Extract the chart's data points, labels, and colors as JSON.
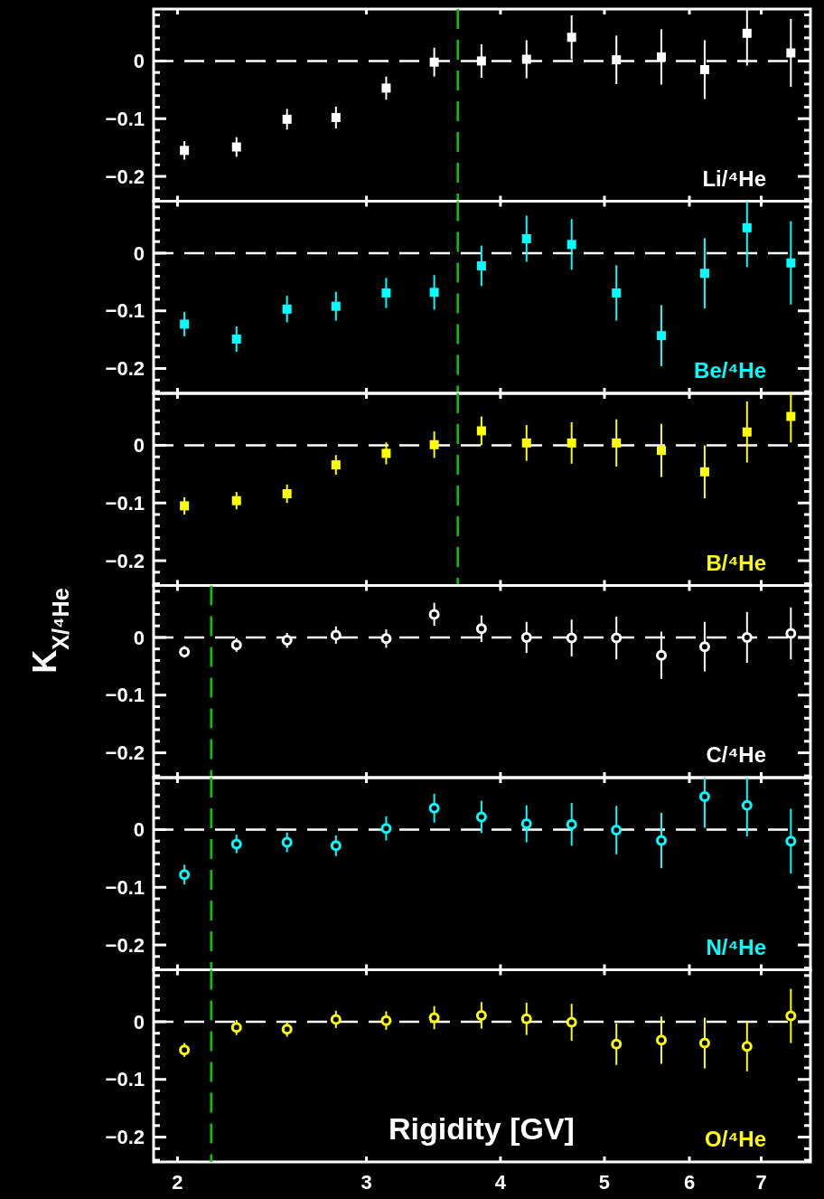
{
  "chart_data": [
    {
      "type": "scatter",
      "x": [
        2.03,
        2.27,
        2.53,
        2.81,
        3.13,
        3.47,
        3.84,
        4.23,
        4.66,
        5.13,
        5.65,
        6.2,
        6.79,
        7.46
      ],
      "series": [
        {
          "name": "Li/⁴He",
          "color": "#ffffff",
          "values": [
            -0.155,
            -0.149,
            -0.101,
            -0.098,
            -0.047,
            -0.002,
            0,
            0.003,
            0.041,
            0.002,
            0.007,
            -0.015,
            0.048,
            0.014
          ],
          "errors": [
            0.016,
            0.017,
            0.018,
            0.019,
            0.02,
            0.025,
            0.029,
            0.033,
            0.038,
            0.042,
            0.048,
            0.051,
            [
              -0.008,
              0.09
            ],
            0.059
          ]
        }
      ],
      "marker": "square",
      "log": "x",
      "xlim": [
        1.9,
        7.78
      ],
      "xticks": [
        {
          "value": 2,
          "label": null
        },
        {
          "value": 3,
          "label": null
        },
        {
          "value": 4,
          "label": null
        },
        {
          "value": 5,
          "label": null
        },
        {
          "value": 6,
          "label": null
        },
        {
          "value": 7,
          "label": null
        }
      ],
      "tick_labels": "y",
      "ylim": [
        -0.243,
        0.09
      ],
      "yticks": [
        {
          "value": 0.08,
          "label": null
        },
        {
          "value": 0.06,
          "label": null
        },
        {
          "value": 0.04,
          "label": null
        },
        {
          "value": 0.02,
          "label": null
        },
        {
          "value": 0,
          "label": "0"
        },
        {
          "value": -0.02,
          "label": null
        },
        {
          "value": -0.04,
          "label": null
        },
        {
          "value": -0.06,
          "label": null
        },
        {
          "value": -0.08,
          "label": null
        },
        {
          "value": -0.1,
          "label": "−0.1"
        },
        {
          "value": -0.12,
          "label": null
        },
        {
          "value": -0.14,
          "label": null
        },
        {
          "value": -0.16,
          "label": null
        },
        {
          "value": -0.18,
          "label": null
        },
        {
          "value": -0.2,
          "label": "−0.2"
        },
        {
          "value": -0.22,
          "label": null
        },
        {
          "value": -0.24,
          "label": null
        }
      ],
      "ref_lines": [
        {
          "axis": "y",
          "value": 0,
          "color": "#ffffff",
          "line_style": "dashed"
        },
        {
          "axis": "x",
          "value": 3.65,
          "color": "#00cc00",
          "line_style": "dashed"
        }
      ]
    },
    {
      "type": "scatter",
      "x": [
        2.03,
        2.27,
        2.53,
        2.81,
        3.13,
        3.47,
        3.84,
        4.23,
        4.66,
        5.13,
        5.65,
        6.2,
        6.79,
        7.46
      ],
      "series": [
        {
          "name": "Be/⁴He",
          "color": "#00ffff",
          "values": [
            -0.123,
            -0.149,
            -0.097,
            -0.092,
            -0.069,
            -0.068,
            -0.022,
            0.025,
            0.015,
            -0.069,
            -0.143,
            -0.035,
            0.044,
            -0.017
          ],
          "errors": [
            0.021,
            0.022,
            0.023,
            0.025,
            0.026,
            0.03,
            0.035,
            0.04,
            0.044,
            0.048,
            0.053,
            0.061,
            [
              -0.024,
              0.09
            ],
            0.072
          ]
        }
      ],
      "marker": "square",
      "log": "x",
      "xlim": [
        1.9,
        7.78
      ],
      "xticks": [
        {
          "value": 2,
          "label": null
        },
        {
          "value": 3,
          "label": null
        },
        {
          "value": 4,
          "label": null
        },
        {
          "value": 5,
          "label": null
        },
        {
          "value": 6,
          "label": null
        },
        {
          "value": 7,
          "label": null
        }
      ],
      "tick_labels": "y",
      "ylim": [
        -0.243,
        0.09
      ],
      "yticks": [
        {
          "value": 0.08,
          "label": null
        },
        {
          "value": 0.06,
          "label": null
        },
        {
          "value": 0.04,
          "label": null
        },
        {
          "value": 0.02,
          "label": null
        },
        {
          "value": 0,
          "label": "0"
        },
        {
          "value": -0.02,
          "label": null
        },
        {
          "value": -0.04,
          "label": null
        },
        {
          "value": -0.06,
          "label": null
        },
        {
          "value": -0.08,
          "label": null
        },
        {
          "value": -0.1,
          "label": "−0.1"
        },
        {
          "value": -0.12,
          "label": null
        },
        {
          "value": -0.14,
          "label": null
        },
        {
          "value": -0.16,
          "label": null
        },
        {
          "value": -0.18,
          "label": null
        },
        {
          "value": -0.2,
          "label": "−0.2"
        },
        {
          "value": -0.22,
          "label": null
        },
        {
          "value": -0.24,
          "label": null
        }
      ],
      "ref_lines": [
        {
          "axis": "y",
          "value": 0,
          "color": "#ffffff",
          "line_style": "dashed"
        },
        {
          "axis": "x",
          "value": 3.65,
          "color": "#00cc00",
          "line_style": "dashed"
        }
      ]
    },
    {
      "type": "scatter",
      "x": [
        2.03,
        2.27,
        2.53,
        2.81,
        3.13,
        3.47,
        3.84,
        4.23,
        4.66,
        5.13,
        5.65,
        6.2,
        6.79,
        7.46
      ],
      "series": [
        {
          "name": "B/⁴He",
          "color": "#ffff00",
          "values": [
            -0.105,
            -0.096,
            -0.084,
            -0.034,
            -0.014,
            0.001,
            0.025,
            0.004,
            0.004,
            0.004,
            -0.009,
            -0.046,
            0.023,
            0.05
          ],
          "errors": [
            0.015,
            0.015,
            0.016,
            0.017,
            0.019,
            0.023,
            0.025,
            0.031,
            0.036,
            0.041,
            0.046,
            0.046,
            0.053,
            [
              0.005,
              0.09
            ]
          ]
        }
      ],
      "marker": "square",
      "log": "x",
      "xlim": [
        1.9,
        7.78
      ],
      "xticks": [
        {
          "value": 2,
          "label": null
        },
        {
          "value": 3,
          "label": null
        },
        {
          "value": 4,
          "label": null
        },
        {
          "value": 5,
          "label": null
        },
        {
          "value": 6,
          "label": null
        },
        {
          "value": 7,
          "label": null
        }
      ],
      "tick_labels": "y",
      "ylim": [
        -0.243,
        0.09
      ],
      "yticks": [
        {
          "value": 0.08,
          "label": null
        },
        {
          "value": 0.06,
          "label": null
        },
        {
          "value": 0.04,
          "label": null
        },
        {
          "value": 0.02,
          "label": null
        },
        {
          "value": 0,
          "label": "0"
        },
        {
          "value": -0.02,
          "label": null
        },
        {
          "value": -0.04,
          "label": null
        },
        {
          "value": -0.06,
          "label": null
        },
        {
          "value": -0.08,
          "label": null
        },
        {
          "value": -0.1,
          "label": "−0.1"
        },
        {
          "value": -0.12,
          "label": null
        },
        {
          "value": -0.14,
          "label": null
        },
        {
          "value": -0.16,
          "label": null
        },
        {
          "value": -0.18,
          "label": null
        },
        {
          "value": -0.2,
          "label": "−0.2"
        },
        {
          "value": -0.22,
          "label": null
        },
        {
          "value": -0.24,
          "label": null
        }
      ],
      "ref_lines": [
        {
          "axis": "y",
          "value": 0,
          "color": "#ffffff",
          "line_style": "dashed"
        },
        {
          "axis": "x",
          "value": 3.65,
          "color": "#00cc00",
          "line_style": "dashed"
        }
      ]
    },
    {
      "type": "scatter",
      "ylabel": "K$_{X/⁴He}$",
      "x": [
        2.03,
        2.27,
        2.53,
        2.81,
        3.13,
        3.47,
        3.84,
        4.23,
        4.66,
        5.13,
        5.65,
        6.2,
        6.79,
        7.46
      ],
      "series": [
        {
          "name": "C/⁴He",
          "color": "#ffffff",
          "values": [
            -0.025,
            -0.013,
            -0.005,
            0.004,
            -0.002,
            0.04,
            0.015,
            0,
            -0.001,
            -0.001,
            -0.031,
            -0.016,
            0,
            0.007
          ],
          "errors": [
            0.01,
            0.012,
            0.013,
            0.015,
            0.016,
            0.02,
            0.023,
            0.027,
            0.032,
            0.037,
            0.041,
            0.043,
            0.044,
            0.045
          ]
        }
      ],
      "marker": "circle",
      "log": "x",
      "xlim": [
        1.9,
        7.78
      ],
      "xticks": [
        {
          "value": 2,
          "label": null
        },
        {
          "value": 3,
          "label": null
        },
        {
          "value": 4,
          "label": null
        },
        {
          "value": 5,
          "label": null
        },
        {
          "value": 6,
          "label": null
        },
        {
          "value": 7,
          "label": null
        }
      ],
      "tick_labels": "y",
      "ylim": [
        -0.243,
        0.09
      ],
      "yticks": [
        {
          "value": 0.08,
          "label": null
        },
        {
          "value": 0.06,
          "label": null
        },
        {
          "value": 0.04,
          "label": null
        },
        {
          "value": 0.02,
          "label": null
        },
        {
          "value": 0,
          "label": "0"
        },
        {
          "value": -0.02,
          "label": null
        },
        {
          "value": -0.04,
          "label": null
        },
        {
          "value": -0.06,
          "label": null
        },
        {
          "value": -0.08,
          "label": null
        },
        {
          "value": -0.1,
          "label": "−0.1"
        },
        {
          "value": -0.12,
          "label": null
        },
        {
          "value": -0.14,
          "label": null
        },
        {
          "value": -0.16,
          "label": null
        },
        {
          "value": -0.18,
          "label": null
        },
        {
          "value": -0.2,
          "label": "−0.2"
        },
        {
          "value": -0.22,
          "label": null
        },
        {
          "value": -0.24,
          "label": null
        }
      ],
      "ref_lines": [
        {
          "axis": "y",
          "value": 0,
          "color": "#ffffff",
          "line_style": "dashed"
        },
        {
          "axis": "x",
          "value": 2.15,
          "color": "#00cc00",
          "line_style": "dashed"
        }
      ]
    },
    {
      "type": "scatter",
      "x": [
        2.03,
        2.27,
        2.53,
        2.81,
        3.13,
        3.47,
        3.84,
        4.23,
        4.66,
        5.13,
        5.65,
        6.2,
        6.79,
        7.46
      ],
      "series": [
        {
          "name": "N/⁴He",
          "color": "#00ffff",
          "values": [
            -0.078,
            -0.025,
            -0.022,
            -0.028,
            0.002,
            0.037,
            0.022,
            0.01,
            0.009,
            -0.001,
            -0.019,
            0.057,
            0.042,
            -0.02
          ],
          "errors": [
            0.017,
            0.016,
            0.017,
            0.018,
            0.021,
            0.025,
            0.028,
            0.032,
            0.037,
            0.042,
            0.048,
            [
              0.003,
              0.09
            ],
            [
              -0.012,
              0.09
            ],
            0.056
          ]
        }
      ],
      "marker": "circle",
      "log": "x",
      "xlim": [
        1.9,
        7.78
      ],
      "xticks": [
        {
          "value": 2,
          "label": null
        },
        {
          "value": 3,
          "label": null
        },
        {
          "value": 4,
          "label": null
        },
        {
          "value": 5,
          "label": null
        },
        {
          "value": 6,
          "label": null
        },
        {
          "value": 7,
          "label": null
        }
      ],
      "tick_labels": "y",
      "ylim": [
        -0.243,
        0.09
      ],
      "yticks": [
        {
          "value": 0.08,
          "label": null
        },
        {
          "value": 0.06,
          "label": null
        },
        {
          "value": 0.04,
          "label": null
        },
        {
          "value": 0.02,
          "label": null
        },
        {
          "value": 0,
          "label": "0"
        },
        {
          "value": -0.02,
          "label": null
        },
        {
          "value": -0.04,
          "label": null
        },
        {
          "value": -0.06,
          "label": null
        },
        {
          "value": -0.08,
          "label": null
        },
        {
          "value": -0.1,
          "label": "−0.1"
        },
        {
          "value": -0.12,
          "label": null
        },
        {
          "value": -0.14,
          "label": null
        },
        {
          "value": -0.16,
          "label": null
        },
        {
          "value": -0.18,
          "label": null
        },
        {
          "value": -0.2,
          "label": "−0.2"
        },
        {
          "value": -0.22,
          "label": null
        },
        {
          "value": -0.24,
          "label": null
        }
      ],
      "ref_lines": [
        {
          "axis": "y",
          "value": 0,
          "color": "#ffffff",
          "line_style": "dashed"
        },
        {
          "axis": "x",
          "value": 2.15,
          "color": "#00cc00",
          "line_style": "dashed"
        }
      ]
    },
    {
      "type": "scatter",
      "xlabel": "Rigidity [GV]",
      "x": [
        2.03,
        2.27,
        2.53,
        2.81,
        3.13,
        3.47,
        3.84,
        4.23,
        4.66,
        5.13,
        5.65,
        6.2,
        6.79,
        7.46
      ],
      "series": [
        {
          "name": "O/⁴He",
          "color": "#ffff00",
          "values": [
            -0.049,
            -0.01,
            -0.013,
            0.004,
            0.002,
            0.007,
            0.011,
            0.005,
            -0.001,
            -0.039,
            -0.032,
            -0.037,
            -0.043,
            0.01
          ],
          "errors": [
            0.012,
            0.013,
            0.013,
            0.015,
            0.016,
            0.02,
            0.023,
            0.028,
            0.032,
            0.036,
            0.041,
            0.044,
            0.043,
            0.047
          ]
        }
      ],
      "marker": "circle",
      "log": "x",
      "xlim": [
        1.9,
        7.78
      ],
      "xticks": [
        2,
        3,
        4,
        5,
        6,
        7
      ],
      "ylim": [
        -0.243,
        0.09
      ],
      "yticks": [
        {
          "value": 0.08,
          "label": null
        },
        {
          "value": 0.06,
          "label": null
        },
        {
          "value": 0.04,
          "label": null
        },
        {
          "value": 0.02,
          "label": null
        },
        {
          "value": 0,
          "label": "0"
        },
        {
          "value": -0.02,
          "label": null
        },
        {
          "value": -0.04,
          "label": null
        },
        {
          "value": -0.06,
          "label": null
        },
        {
          "value": -0.08,
          "label": null
        },
        {
          "value": -0.1,
          "label": "−0.1"
        },
        {
          "value": -0.12,
          "label": null
        },
        {
          "value": -0.14,
          "label": null
        },
        {
          "value": -0.16,
          "label": null
        },
        {
          "value": -0.18,
          "label": null
        },
        {
          "value": -0.2,
          "label": "−0.2"
        },
        {
          "value": -0.22,
          "label": null
        },
        {
          "value": -0.24,
          "label": null
        }
      ],
      "ref_lines": [
        {
          "axis": "y",
          "value": 0,
          "color": "#ffffff",
          "line_style": "dashed"
        },
        {
          "axis": "x",
          "value": 2.15,
          "color": "#00cc00",
          "line_style": "dashed"
        }
      ]
    }
  ]
}
